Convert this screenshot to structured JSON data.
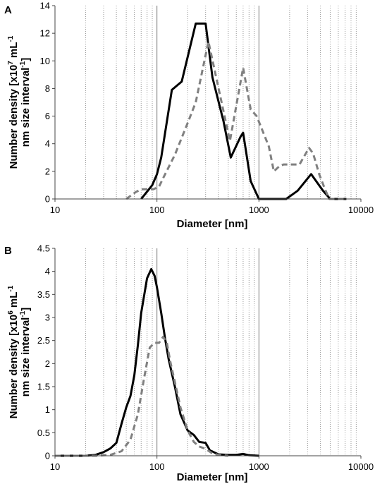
{
  "chart_data": [
    {
      "panel": "A",
      "type": "line",
      "xscale": "log",
      "xlim": [
        10,
        10000
      ],
      "ylim": [
        0,
        14
      ],
      "x_ticks": [
        "10",
        "100",
        "1000",
        "10000"
      ],
      "y_ticks": [
        "0",
        "2",
        "4",
        "6",
        "8",
        "10",
        "12",
        "14"
      ],
      "xlabel": "Diameter [nm]",
      "ylabel": {
        "line1_prefix": "Number density [x10",
        "line1_exp": "7",
        "line1_mid": " mL",
        "line1_exp2": "-1",
        "line2_prefix": "nm size interval",
        "line2_exp": "-1",
        "line2_suffix": "]"
      },
      "grid": "minor vertical dotted, major vertical solid",
      "legend": "none",
      "series": [
        {
          "style": "solid",
          "color": "#000000",
          "points": [
            [
              70,
              0
            ],
            [
              90,
              1
            ],
            [
              100,
              1.8
            ],
            [
              110,
              3
            ],
            [
              140,
              7.9
            ],
            [
              175,
              8.5
            ],
            [
              240,
              12.7
            ],
            [
              300,
              12.7
            ],
            [
              350,
              8.8
            ],
            [
              450,
              5.6
            ],
            [
              530,
              3
            ],
            [
              660,
              4.5
            ],
            [
              700,
              4.8
            ],
            [
              830,
              1.3
            ],
            [
              1000,
              0
            ],
            [
              1850,
              0
            ],
            [
              2400,
              0.6
            ],
            [
              3250,
              1.8
            ],
            [
              4250,
              0.6
            ],
            [
              5000,
              0
            ],
            [
              7200,
              0
            ]
          ]
        },
        {
          "style": "dashed",
          "color": "#808080",
          "points": [
            [
              50,
              0
            ],
            [
              62,
              0.5
            ],
            [
              70,
              0.7
            ],
            [
              92,
              0.7
            ],
            [
              105,
              0.9
            ],
            [
              115,
              1.5
            ],
            [
              150,
              3.2
            ],
            [
              200,
              5.5
            ],
            [
              240,
              7
            ],
            [
              320,
              11.4
            ],
            [
              520,
              4.2
            ],
            [
              700,
              9.5
            ],
            [
              830,
              6.5
            ],
            [
              950,
              6
            ],
            [
              1050,
              5.2
            ],
            [
              1250,
              3.8
            ],
            [
              1400,
              2
            ],
            [
              1600,
              2.4
            ],
            [
              1750,
              2.5
            ],
            [
              2500,
              2.5
            ],
            [
              3100,
              3.7
            ],
            [
              3400,
              3.3
            ],
            [
              3900,
              1.8
            ],
            [
              4450,
              0.7
            ],
            [
              4900,
              0
            ],
            [
              7200,
              0
            ]
          ]
        }
      ]
    },
    {
      "panel": "B",
      "type": "line",
      "xscale": "log",
      "xlim": [
        10,
        10000
      ],
      "ylim": [
        0,
        4.5
      ],
      "x_ticks": [
        "10",
        "100",
        "1000",
        "10000"
      ],
      "y_ticks": [
        "0",
        "0.5",
        "1",
        "1.5",
        "2",
        "2.5",
        "3",
        "3.5",
        "4",
        "4.5"
      ],
      "xlabel": "Diameter [nm]",
      "ylabel": {
        "line1_prefix": "Number density  [x10",
        "line1_exp": "6",
        "line1_mid": " mL",
        "line1_exp2": "-1",
        "line2_prefix": "nm size interval",
        "line2_exp": "-1",
        "line2_suffix": "]"
      },
      "grid": "minor vertical dotted, major vertical solid",
      "legend": "none",
      "series": [
        {
          "style": "solid",
          "color": "#000000",
          "points": [
            [
              10,
              0
            ],
            [
              20,
              0
            ],
            [
              25,
              0.02
            ],
            [
              30,
              0.08
            ],
            [
              35,
              0.16
            ],
            [
              40,
              0.28
            ],
            [
              45,
              0.7
            ],
            [
              50,
              1.05
            ],
            [
              55,
              1.3
            ],
            [
              60,
              1.75
            ],
            [
              65,
              2.4
            ],
            [
              70,
              3.1
            ],
            [
              80,
              3.85
            ],
            [
              88,
              4.05
            ],
            [
              95,
              3.9
            ],
            [
              100,
              3.65
            ],
            [
              110,
              3.1
            ],
            [
              120,
              2.55
            ],
            [
              130,
              2.1
            ],
            [
              150,
              1.5
            ],
            [
              170,
              0.9
            ],
            [
              200,
              0.55
            ],
            [
              230,
              0.45
            ],
            [
              260,
              0.3
            ],
            [
              300,
              0.28
            ],
            [
              330,
              0.12
            ],
            [
              400,
              0.03
            ],
            [
              500,
              0.02
            ],
            [
              600,
              0.02
            ],
            [
              700,
              0.04
            ],
            [
              800,
              0.01
            ],
            [
              1000,
              0
            ]
          ]
        },
        {
          "style": "dashed",
          "color": "#808080",
          "points": [
            [
              10,
              0
            ],
            [
              25,
              0
            ],
            [
              35,
              0.02
            ],
            [
              45,
              0.1
            ],
            [
              55,
              0.35
            ],
            [
              65,
              0.9
            ],
            [
              75,
              1.7
            ],
            [
              85,
              2.35
            ],
            [
              95,
              2.45
            ],
            [
              105,
              2.45
            ],
            [
              115,
              2.58
            ],
            [
              125,
              2.45
            ],
            [
              135,
              2.05
            ],
            [
              150,
              1.6
            ],
            [
              170,
              1.05
            ],
            [
              200,
              0.55
            ],
            [
              230,
              0.3
            ],
            [
              260,
              0.2
            ],
            [
              300,
              0.15
            ],
            [
              350,
              0.05
            ],
            [
              400,
              0.02
            ],
            [
              500,
              0
            ]
          ]
        }
      ]
    }
  ],
  "panels": {
    "A": {
      "label": "A"
    },
    "B": {
      "label": "B"
    }
  }
}
